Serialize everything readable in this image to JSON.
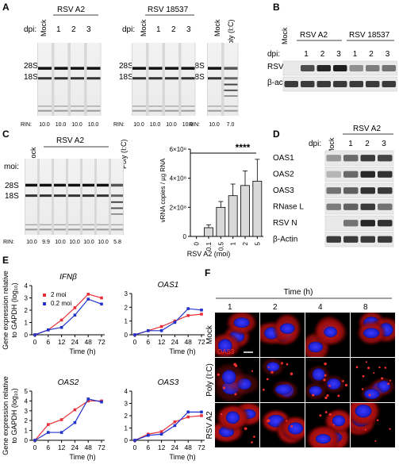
{
  "panel_labels": [
    "A",
    "B",
    "C",
    "D",
    "E",
    "F"
  ],
  "panel_a": {
    "mock": "Mock",
    "rsv_a2": "RSV A2",
    "rsv_18537": "RSV 18537",
    "polyic": "Poly (I:C)",
    "dpi": "dpi:",
    "days": [
      "1",
      "2",
      "3"
    ],
    "r28": "28S",
    "r18": "18S",
    "rin": "RIN:",
    "rin_a2": [
      "10.0",
      "10.0",
      "10.0",
      "10.0"
    ],
    "rin_18537": [
      "10.0",
      "10.0",
      "10.0",
      "10.0"
    ],
    "rin_poly": [
      "10.0",
      "7.0"
    ]
  },
  "panel_b": {
    "mock": "Mock",
    "rsv_a2": "RSV A2",
    "rsv_18537": "RSV 18537",
    "dpi": "dpi:",
    "days": [
      "1",
      "2",
      "3",
      "1",
      "2",
      "3"
    ],
    "rows": [
      "RSV N",
      "β-actin"
    ]
  },
  "panel_c": {
    "mock": "Mock",
    "rsv_a2": "RSV A2",
    "polyic": "Poly (I:C)",
    "moi": "moi:",
    "mois": [
      "0.1",
      "0.5",
      "1",
      "2",
      "5"
    ],
    "r28": "28S",
    "r18": "18S",
    "rin": "RIN:",
    "rin_values": [
      "10.0",
      "9.9",
      "10.0",
      "10.0",
      "10.0",
      "10.0",
      "5.8"
    ]
  },
  "panel_d": {
    "mock": "Mock",
    "rsv_a2": "RSV A2",
    "dpi": "dpi:",
    "days": [
      "1",
      "2",
      "3"
    ],
    "rows": [
      "OAS1",
      "OAS2",
      "OAS3",
      "RNase L",
      "RSV N",
      "β-Actin"
    ]
  },
  "panel_f": {
    "time_label": "Time (h)",
    "times": [
      "1",
      "2",
      "4",
      "8"
    ],
    "rows": [
      "Mock",
      "Poly (I:C)",
      "RSV A2"
    ],
    "stain": "OAS3"
  },
  "chart_data": [
    {
      "type": "bar",
      "categories": [
        "0",
        "0.1",
        "0.5",
        "1",
        "2",
        "5"
      ],
      "values": [
        0,
        0.6,
        2.0,
        2.8,
        3.5,
        3.8
      ],
      "errors": [
        0,
        0.2,
        0.4,
        0.8,
        1.0,
        1.5
      ],
      "xlabel": "RSV A2 (moi)",
      "ylabel": "vRNA copies / µg RNA",
      "yticks": [
        "0",
        "2×10⁸",
        "4×10⁸",
        "6×10⁸"
      ],
      "ylim": [
        0,
        6
      ],
      "annotation": "****"
    },
    {
      "type": "line",
      "title": "IFNβ",
      "x": [
        0,
        6,
        12,
        24,
        48,
        72
      ],
      "xticks": [
        "0",
        "6",
        "12",
        "24",
        "48",
        "72"
      ],
      "yticks": [
        "0",
        "1",
        "2",
        "3",
        "4"
      ],
      "ylim": [
        0,
        4
      ],
      "ylabel": "Gene expression relative to GAPDH (log₁₀)",
      "xlabel": "Time (h)",
      "legend": [
        "2 moi",
        "0.2 moi"
      ],
      "series": [
        {
          "name": "2 moi",
          "color": "#e8303a",
          "values": [
            0,
            0.4,
            1.2,
            2.2,
            3.3,
            3.0
          ]
        },
        {
          "name": "0.2 moi",
          "color": "#2233cc",
          "values": [
            0,
            0.4,
            0.6,
            1.6,
            2.9,
            2.5
          ]
        }
      ]
    },
    {
      "type": "line",
      "title": "OAS1",
      "x": [
        0,
        6,
        12,
        24,
        48,
        72
      ],
      "xticks": [
        "0",
        "6",
        "12",
        "24",
        "48",
        "72"
      ],
      "yticks": [
        "0",
        "1",
        "2",
        "3"
      ],
      "ylim": [
        0,
        3
      ],
      "xlabel": "Time (h)",
      "series": [
        {
          "name": "2 moi",
          "color": "#e8303a",
          "values": [
            0,
            0.3,
            0.6,
            1.0,
            1.4,
            1.5
          ]
        },
        {
          "name": "0.2 moi",
          "color": "#2233cc",
          "values": [
            0,
            0.3,
            0.3,
            0.9,
            1.9,
            1.8
          ]
        }
      ]
    },
    {
      "type": "line",
      "title": "OAS2",
      "x": [
        0,
        6,
        12,
        24,
        48,
        72
      ],
      "xticks": [
        "0",
        "6",
        "12",
        "24",
        "48",
        "72"
      ],
      "yticks": [
        "0",
        "1",
        "2",
        "3",
        "4",
        "5"
      ],
      "ylim": [
        0,
        5
      ],
      "ylabel": "Gene expression relative to GAPDH (log₁₀)",
      "xlabel": "Time (h)",
      "series": [
        {
          "name": "2 moi",
          "color": "#e8303a",
          "values": [
            0,
            1.6,
            2.1,
            3.1,
            4.0,
            4.0
          ]
        },
        {
          "name": "0.2 moi",
          "color": "#2233cc",
          "values": [
            0,
            0.8,
            0.8,
            1.8,
            4.2,
            3.9
          ]
        }
      ]
    },
    {
      "type": "line",
      "title": "OAS3",
      "x": [
        0,
        6,
        12,
        24,
        48,
        72
      ],
      "xticks": [
        "0",
        "6",
        "12",
        "24",
        "48",
        "72"
      ],
      "yticks": [
        "0",
        "1",
        "2",
        "3",
        "4"
      ],
      "ylim": [
        0,
        4
      ],
      "xlabel": "Time (h)",
      "series": [
        {
          "name": "2 moi",
          "color": "#e8303a",
          "values": [
            0,
            0.5,
            0.7,
            1.5,
            1.9,
            2.0
          ]
        },
        {
          "name": "0.2 moi",
          "color": "#2233cc",
          "values": [
            0,
            0.4,
            0.5,
            1.2,
            2.3,
            2.3
          ]
        }
      ]
    }
  ]
}
